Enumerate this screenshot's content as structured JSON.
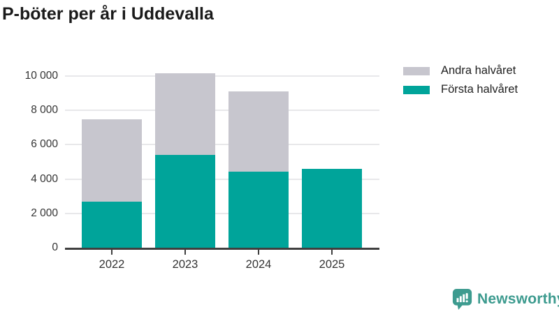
{
  "title": "P-böter per år i Uddevalla",
  "legend": [
    {
      "label": "Andra halvåret",
      "color": "#c7c6ce"
    },
    {
      "label": "Första halvåret",
      "color": "#00a49a"
    }
  ],
  "chart_data": {
    "type": "bar",
    "stacked": true,
    "title": "P-böter per år i Uddevalla",
    "categories": [
      "2022",
      "2023",
      "2024",
      "2025"
    ],
    "series": [
      {
        "name": "Första halvåret",
        "color": "#00a49a",
        "values": [
          2700,
          5400,
          4450,
          4600
        ]
      },
      {
        "name": "Andra halvåret",
        "color": "#c7c6ce",
        "values": [
          4800,
          4750,
          4650,
          0
        ]
      }
    ],
    "totals": [
      7500,
      10150,
      9100,
      4600
    ],
    "xlabel": "",
    "ylabel": "",
    "ylim": [
      0,
      10000
    ],
    "yticks": [
      0,
      2000,
      4000,
      6000,
      8000,
      10000
    ],
    "ytick_labels": [
      "0",
      "2 000",
      "4 000",
      "6 000",
      "8 000",
      "10 000"
    ],
    "grid": true,
    "legend_position": "top-right"
  },
  "branding": {
    "logo_text": "Newsworthy",
    "logo_color": "#3d9b8f",
    "logo_icon": "bar-chart-speech-bubble-icon"
  },
  "colors": {
    "first_half": "#00a49a",
    "second_half": "#c7c6ce",
    "axis": "#3f3f3f",
    "gridline": "#e8e8ea",
    "text": "#333333",
    "title_text": "#1a1a1a",
    "background": "#ffffff"
  }
}
